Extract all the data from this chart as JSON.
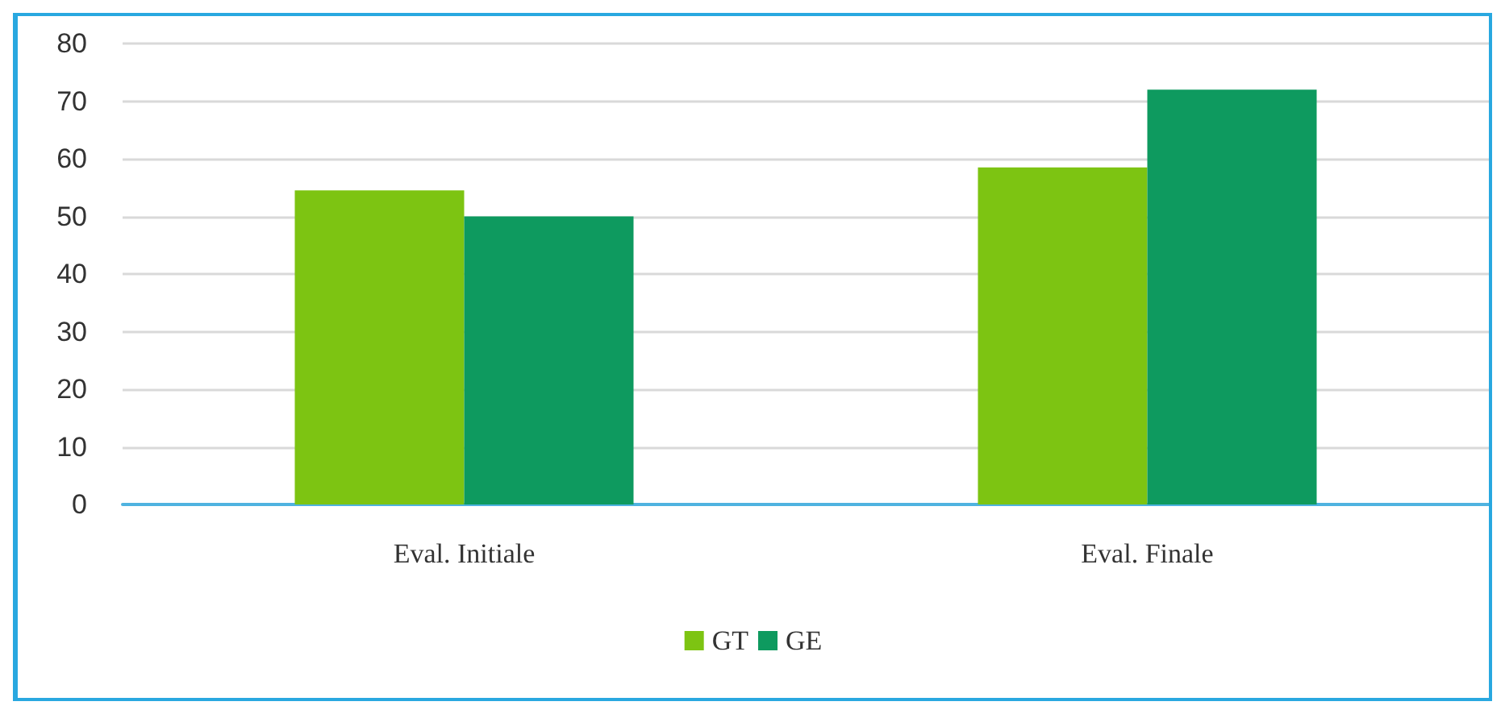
{
  "chart_data": {
    "type": "bar",
    "categories": [
      "Eval. Initiale",
      "Eval. Finale"
    ],
    "series": [
      {
        "name": "GT",
        "color": "#7dc412",
        "values": [
          54.5,
          58.5
        ]
      },
      {
        "name": "GE",
        "color": "#0e9a5f",
        "values": [
          50,
          72
        ]
      }
    ],
    "ylim": [
      0,
      80
    ],
    "yticks": [
      0,
      10,
      20,
      30,
      40,
      50,
      60,
      70,
      80
    ],
    "grid": "y",
    "legend": "bottom"
  }
}
